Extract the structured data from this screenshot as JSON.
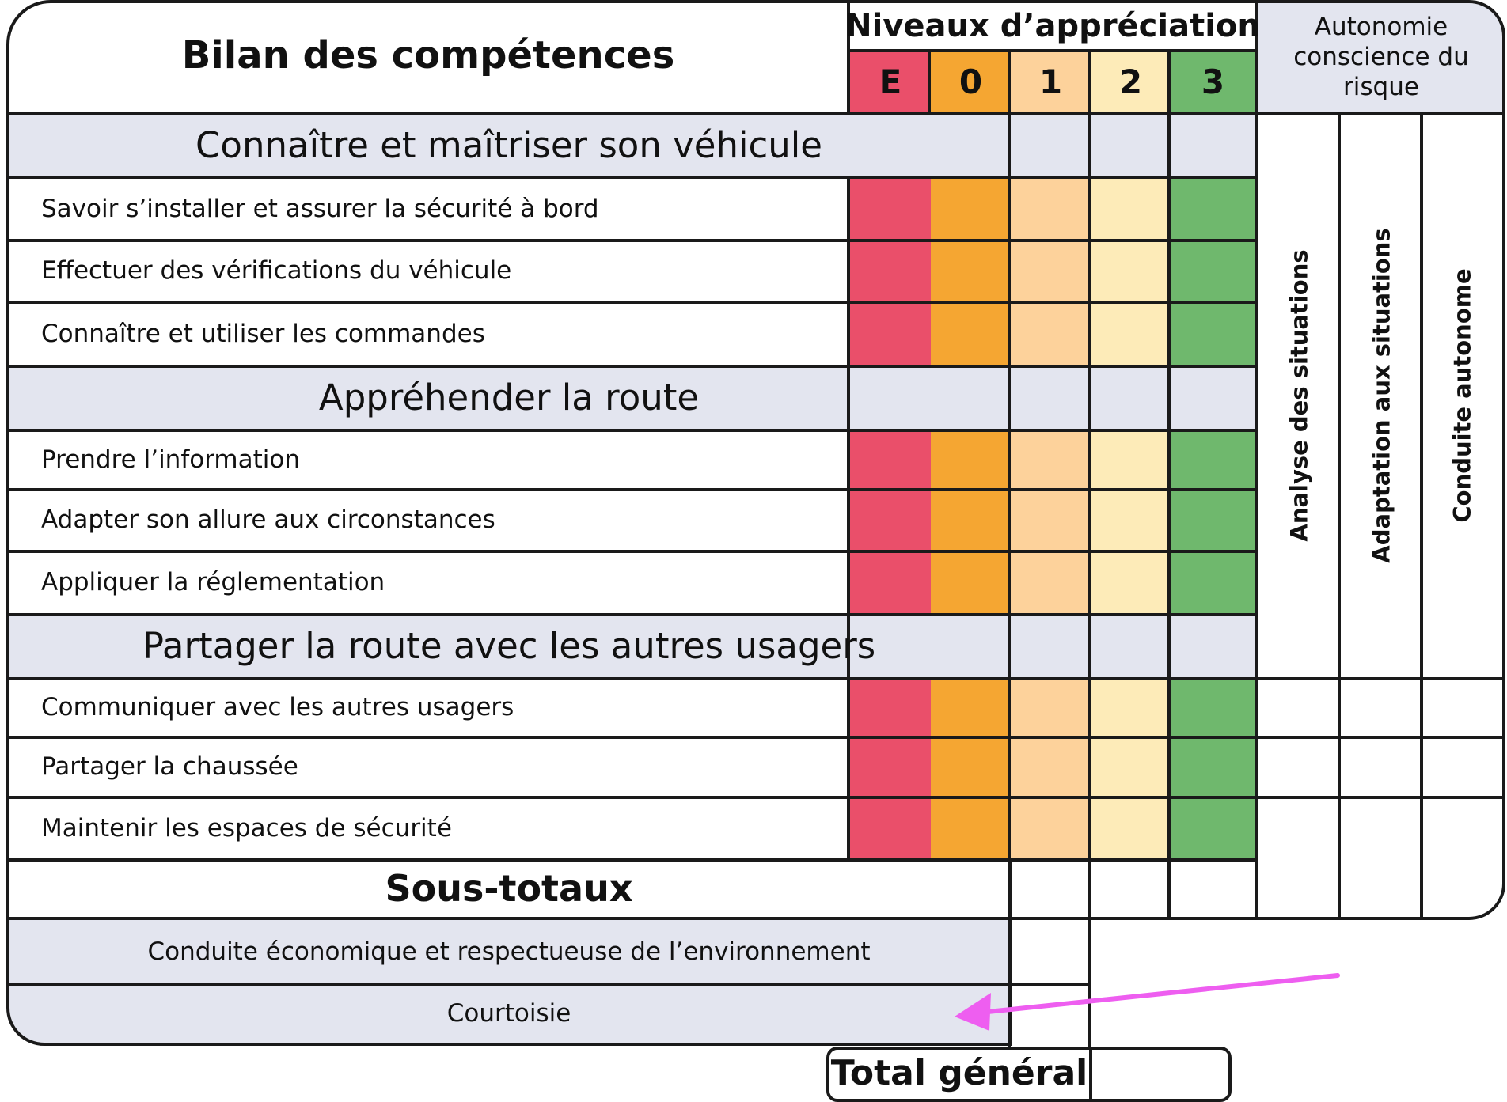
{
  "title": "Bilan des compétences",
  "levels_header": "Niveaux d’appréciation",
  "levels": [
    {
      "label": "E",
      "color": "#ea4f6a"
    },
    {
      "label": "0",
      "color": "#f5a632"
    },
    {
      "label": "1",
      "color": "#fdd29b"
    },
    {
      "label": "2",
      "color": "#fdebb8"
    },
    {
      "label": "3",
      "color": "#6fb86d"
    }
  ],
  "autonomy_header": "Autonomie conscience du risque",
  "autonomy_columns": [
    "Analyse des situations",
    "Adaptation aux situations",
    "Conduite autonome"
  ],
  "sections": [
    {
      "title": "Connaître et maîtriser son véhicule",
      "rows": [
        "Savoir s’installer et assurer la sécurité à bord",
        "Effectuer des vérifications du véhicule",
        "Connaître et utiliser les commandes"
      ]
    },
    {
      "title": "Appréhender la route",
      "rows": [
        "Prendre l’information",
        "Adapter son allure aux circonstances",
        "Appliquer la réglementation"
      ]
    },
    {
      "title": "Partager la route avec les autres usagers",
      "rows": [
        "Communiquer avec les autres usagers",
        "Partager la chaussée",
        "Maintenir les espaces de sécurité"
      ]
    }
  ],
  "subtotals_label": "Sous-totaux",
  "bonus_rows": [
    "Conduite économique et respectueuse de l’environnement",
    "Courtoisie"
  ],
  "total_label": "Total général",
  "annotation": {
    "arrow_color": "#ee5ef0"
  },
  "colors": {
    "section_bg": "#e3e5ef",
    "grid_line": "#1a1a1a"
  }
}
